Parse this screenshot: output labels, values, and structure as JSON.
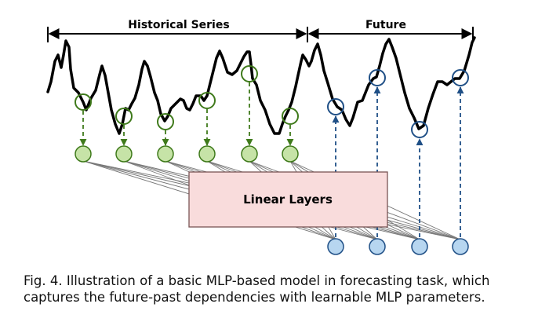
{
  "labels": {
    "historical": "Historical Series",
    "future": "Future",
    "linear_layers": "Linear Layers"
  },
  "caption": {
    "line1": "Fig. 4. Illustration of a basic MLP-based model in forecasting task, which",
    "line2": "captures the future-past dependencies with learnable MLP parameters."
  },
  "colors": {
    "history_node_fill": "#c6e3a7",
    "history_node_stroke": "#3f7a1b",
    "future_node_fill": "#b7d6f0",
    "future_node_stroke": "#1f4f86",
    "linear_box_fill": "#f9dcdc",
    "linear_box_stroke": "#7a5555",
    "series_stroke": "#000000",
    "connection_stroke": "#777777"
  }
}
